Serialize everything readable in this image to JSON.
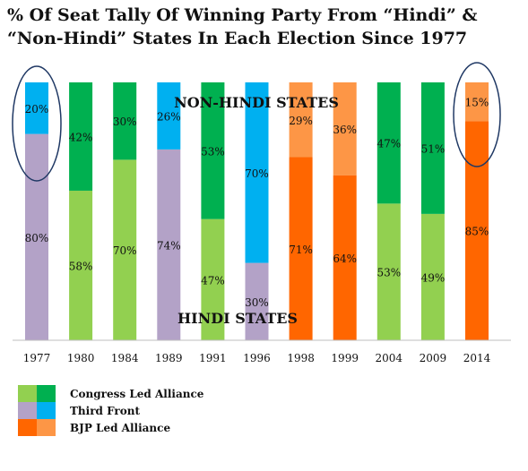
{
  "chart_data": {
    "type": "bar",
    "stacked": true,
    "percent": true,
    "title": "% Of Seat Tally Of Winning Party From “Hindi” & “Non-Hindi” States In Each Election Since 1977",
    "categories": [
      "1977",
      "1980",
      "1984",
      "1989",
      "1991",
      "1996",
      "1998",
      "1999",
      "2004",
      "2009",
      "2014"
    ],
    "winning_party": [
      "Third Front",
      "Congress Led Alliance",
      "Congress Led Alliance",
      "Third Front",
      "Congress Led Alliance",
      "Third Front",
      "BJP Led Alliance",
      "BJP Led Alliance",
      "Congress Led Alliance",
      "Congress Led Alliance",
      "BJP Led Alliance"
    ],
    "series": [
      {
        "name": "HINDI STATES",
        "values": [
          80,
          58,
          70,
          74,
          47,
          30,
          71,
          64,
          53,
          49,
          85
        ]
      },
      {
        "name": "NON-HINDI STATES",
        "values": [
          20,
          42,
          30,
          26,
          53,
          70,
          29,
          36,
          47,
          51,
          15
        ]
      }
    ],
    "ylim": [
      0,
      100
    ],
    "highlighted": [
      "1977",
      "2014"
    ],
    "legend": [
      {
        "label": "Congress Led Alliance",
        "hindi_color": "#92d050",
        "non_hindi_color": "#00b050"
      },
      {
        "label": "Third Front",
        "hindi_color": "#b3a2c7",
        "non_hindi_color": "#00b0f0"
      },
      {
        "label": "BJP Led Alliance",
        "hindi_color": "#ff6600",
        "non_hindi_color": "#fd9646"
      }
    ],
    "legend_position": "bottom-left",
    "grid": false
  }
}
